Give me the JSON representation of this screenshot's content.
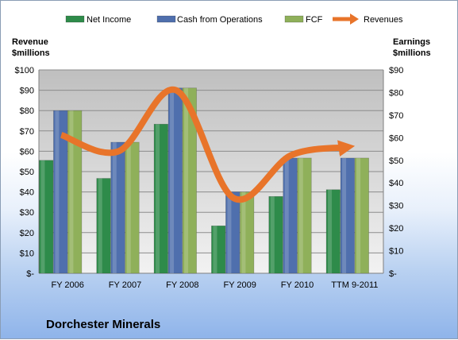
{
  "chart_data": {
    "type": "bar",
    "categories": [
      "FY 2006",
      "FY 2007",
      "FY 2008",
      "FY 2009",
      "FY 2010",
      "TTM 9-2011"
    ],
    "series": [
      {
        "name": "Net Income",
        "axis": "right",
        "color": "#2e8b4a",
        "values": [
          50,
          42,
          66,
          21,
          34,
          37
        ]
      },
      {
        "name": "Cash from Operations",
        "axis": "right",
        "color": "#4f6fad",
        "values": [
          72,
          58,
          82,
          36,
          51,
          51
        ]
      },
      {
        "name": "FCF",
        "axis": "right",
        "color": "#8fb05a",
        "values": [
          72,
          58,
          82,
          36,
          51,
          51
        ]
      },
      {
        "name": "Revenues",
        "axis": "left",
        "type": "line",
        "color": "#e8742a",
        "values": [
          68,
          60,
          90,
          37,
          58,
          62
        ]
      }
    ],
    "left_axis": {
      "title_line1": "Revenue",
      "title_line2": "$millions",
      "ylim": [
        0,
        100
      ],
      "ticks": [
        "$-",
        "$10",
        "$20",
        "$30",
        "$40",
        "$50",
        "$60",
        "$70",
        "$80",
        "$90",
        "$100"
      ]
    },
    "right_axis": {
      "title_line1": "Earnings",
      "title_line2": "$millions",
      "ylim": [
        0,
        90
      ],
      "ticks": [
        "$-",
        "$10",
        "$20",
        "$30",
        "$40",
        "$50",
        "$60",
        "$70",
        "$80",
        "$90"
      ]
    },
    "grid": true,
    "legend_position": "top"
  },
  "company": "Dorchester Minerals"
}
